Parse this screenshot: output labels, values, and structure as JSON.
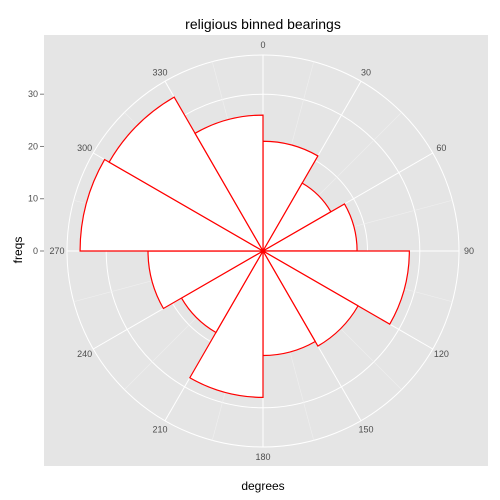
{
  "chart_data": {
    "type": "bar",
    "subtype": "polar-rose",
    "title": "religious binned bearings",
    "xlabel": "degrees",
    "ylabel": "freqs",
    "angle_ticks": [
      "0",
      "30",
      "60",
      "90",
      "120",
      "150",
      "180",
      "210",
      "240",
      "270",
      "300",
      "330"
    ],
    "radial_ticks": [
      "0",
      "10",
      "20",
      "30"
    ],
    "radial_tick_values": [
      0,
      10,
      20,
      30
    ],
    "rlim": [
      0,
      37.5
    ],
    "bin_width_degrees": 30,
    "categories": [
      "0-30",
      "30-60",
      "60-90",
      "90-120",
      "120-150",
      "150-180",
      "180-210",
      "210-240",
      "240-270",
      "270-300",
      "300-330",
      "330-360"
    ],
    "values": [
      21,
      15,
      18,
      28,
      21,
      20,
      28,
      18,
      22,
      35,
      34,
      26
    ],
    "colors": {
      "panel_background": "#e5e5e5",
      "grid": "#ffffff",
      "bar_fill": "#ffffff",
      "bar_outline": "#ff0000",
      "tick_text": "#4d4d4d"
    }
  }
}
